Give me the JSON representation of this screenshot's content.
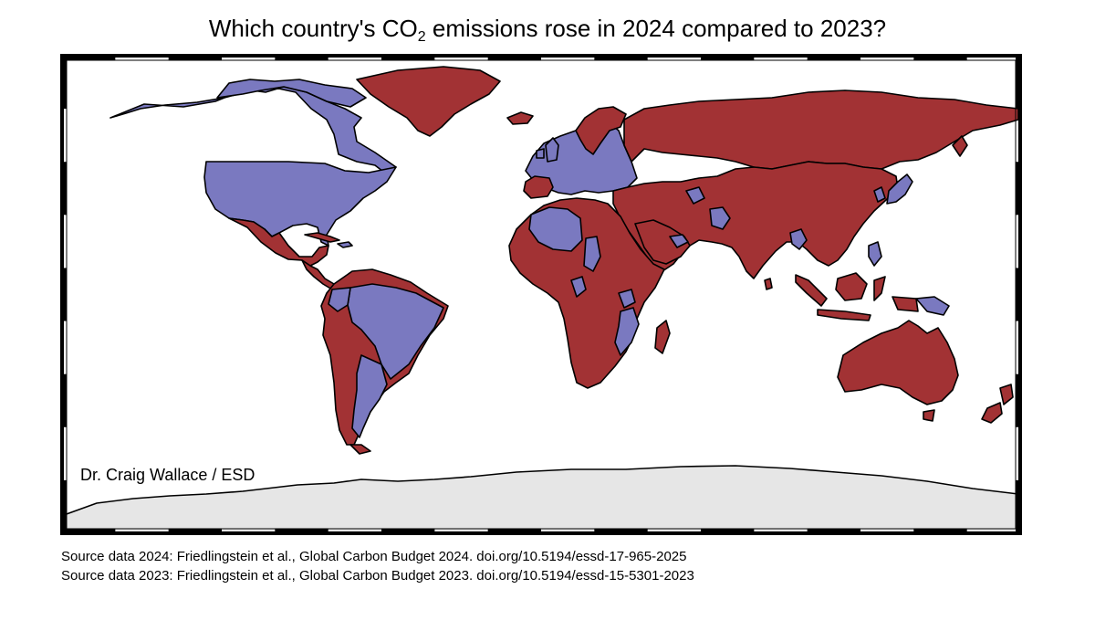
{
  "title": {
    "before_sub": "Which country's CO",
    "subscript": "2",
    "after_sub": " emissions rose in 2024 compared to 2023?"
  },
  "legend_classes": [
    {
      "key": "rose",
      "color": "#a23234"
    },
    {
      "key": "fell",
      "color": "#7a79c0"
    },
    {
      "key": "no_data_antarctica",
      "color": "#e6e6e6"
    }
  ],
  "colors": {
    "ocean": "#ffffff",
    "border": "#000000"
  },
  "credit": "Dr. Craig Wallace / ESD",
  "sources": [
    "Source data 2024: Friedlingstein et al., Global Carbon Budget 2024. doi.org/10.5194/essd-17-965-2025",
    "Source data 2023: Friedlingstein et al., Global Carbon Budget 2023. doi.org/10.5194/essd-15-5301-2023"
  ]
}
